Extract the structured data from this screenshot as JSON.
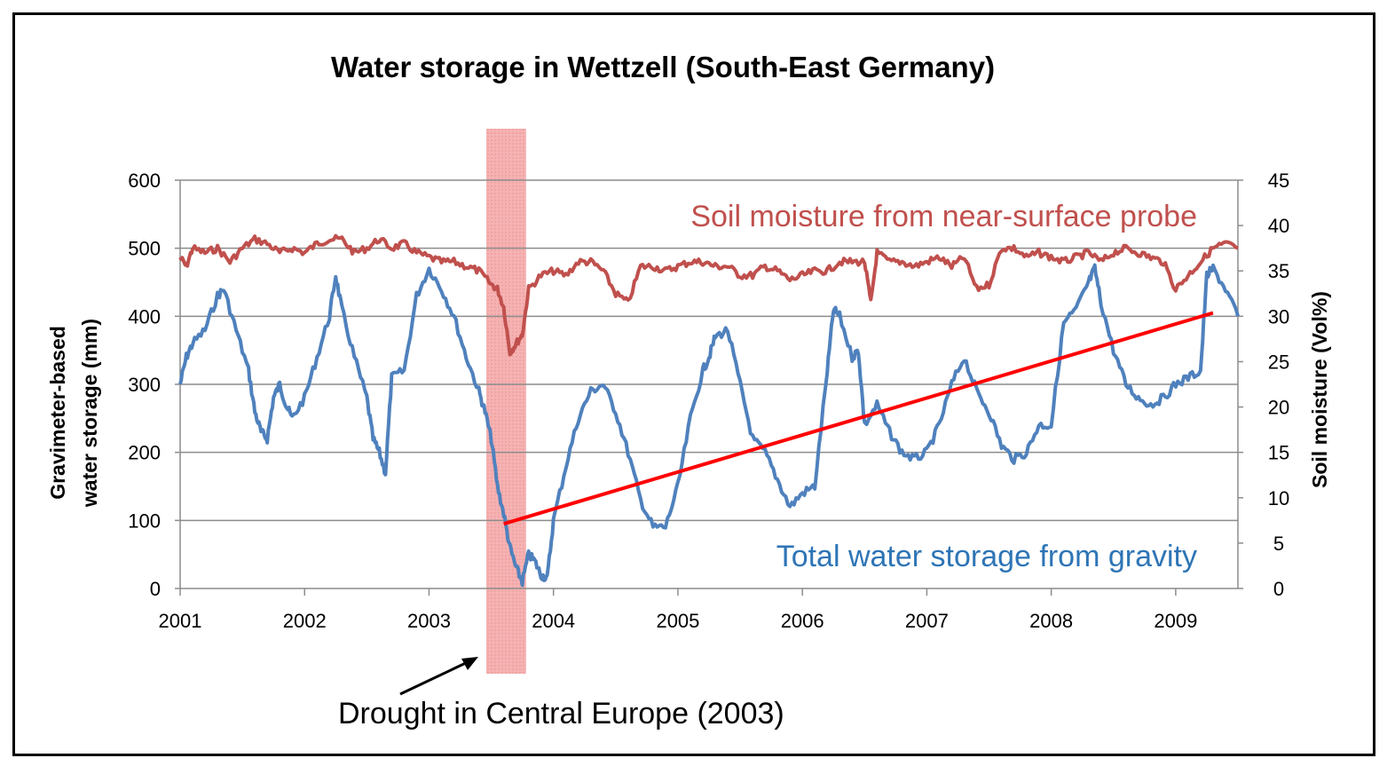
{
  "colors": {
    "soil_series": "#c0504d",
    "gravity_series": "#4f81bd",
    "trend_line": "#ff0000",
    "drought_band": "#f4a4a4",
    "grid": "#8c8c8c"
  },
  "chart_data": {
    "type": "line",
    "title": "Water storage in Wettzell (South-East Germany)",
    "ylabel_left": [
      "Gravimeter-based",
      "water storage (mm)"
    ],
    "ylabel_right": "Soil moisture (Vol%)",
    "xlim": [
      2001.0,
      2009.5
    ],
    "ylim_left": [
      0,
      600
    ],
    "ylim_right": [
      0,
      45
    ],
    "x_ticks": [
      2001,
      2002,
      2003,
      2004,
      2005,
      2006,
      2007,
      2008,
      2009
    ],
    "y_ticks_left": [
      0,
      100,
      200,
      300,
      400,
      500,
      600
    ],
    "y_ticks_right": [
      0,
      5,
      10,
      15,
      20,
      25,
      30,
      35,
      40,
      45
    ],
    "grid": "horizontal",
    "series": [
      {
        "name": "Soil moisture from near-surface probe",
        "axis": "right",
        "color": "#c0504d",
        "x": [
          2001.0,
          2001.05,
          2001.1,
          2001.2,
          2001.3,
          2001.4,
          2001.5,
          2001.6,
          2001.7,
          2001.8,
          2001.9,
          2002.0,
          2002.1,
          2002.2,
          2002.3,
          2002.4,
          2002.5,
          2002.6,
          2002.7,
          2002.8,
          2002.9,
          2003.0,
          2003.1,
          2003.2,
          2003.3,
          2003.4,
          2003.5,
          2003.55,
          2003.6,
          2003.65,
          2003.7,
          2003.75,
          2003.8,
          2003.9,
          2004.0,
          2004.1,
          2004.2,
          2004.3,
          2004.4,
          2004.5,
          2004.6,
          2004.7,
          2004.8,
          2004.9,
          2005.0,
          2005.1,
          2005.2,
          2005.3,
          2005.4,
          2005.5,
          2005.6,
          2005.7,
          2005.8,
          2005.9,
          2006.0,
          2006.1,
          2006.2,
          2006.3,
          2006.4,
          2006.5,
          2006.55,
          2006.6,
          2006.7,
          2006.8,
          2006.9,
          2007.0,
          2007.1,
          2007.2,
          2007.3,
          2007.4,
          2007.5,
          2007.6,
          2007.7,
          2007.8,
          2007.9,
          2008.0,
          2008.1,
          2008.2,
          2008.3,
          2008.4,
          2008.5,
          2008.6,
          2008.7,
          2008.8,
          2008.9,
          2009.0,
          2009.1,
          2009.2,
          2009.3,
          2009.4,
          2009.5
        ],
        "y": [
          36.5,
          35.5,
          37.5,
          37.0,
          37.5,
          36.0,
          37.5,
          38.5,
          38.0,
          37.0,
          37.5,
          37.0,
          38.0,
          38.5,
          38.5,
          37.0,
          37.5,
          38.5,
          37.5,
          38.0,
          37.0,
          36.5,
          36.0,
          36.0,
          35.5,
          35.0,
          33.5,
          33.0,
          31.0,
          26.0,
          27.0,
          28.0,
          33.0,
          34.5,
          35.0,
          34.5,
          36.0,
          36.0,
          35.0,
          32.5,
          31.5,
          35.5,
          35.5,
          35.0,
          35.5,
          36.0,
          36.0,
          35.5,
          35.5,
          34.5,
          34.5,
          35.5,
          35.0,
          34.0,
          34.5,
          35.0,
          35.0,
          36.0,
          36.0,
          36.0,
          31.5,
          37.0,
          36.0,
          36.0,
          35.5,
          36.0,
          36.5,
          35.5,
          36.5,
          33.0,
          33.5,
          37.5,
          37.5,
          36.5,
          37.0,
          36.5,
          36.0,
          36.5,
          37.0,
          36.0,
          37.0,
          37.5,
          37.0,
          36.5,
          36.0,
          33.0,
          34.5,
          36.0,
          37.5,
          38.0,
          37.5
        ]
      },
      {
        "name": "Total water storage from gravity",
        "axis": "left",
        "color": "#4f81bd",
        "x": [
          2001.0,
          2001.05,
          2001.1,
          2001.2,
          2001.3,
          2001.35,
          2001.45,
          2001.55,
          2001.6,
          2001.65,
          2001.7,
          2001.75,
          2001.8,
          2001.85,
          2001.9,
          2002.0,
          2002.1,
          2002.2,
          2002.25,
          2002.3,
          2002.4,
          2002.5,
          2002.55,
          2002.6,
          2002.65,
          2002.7,
          2002.8,
          2002.9,
          2003.0,
          2003.1,
          2003.2,
          2003.3,
          2003.4,
          2003.45,
          2003.5,
          2003.55,
          2003.6,
          2003.65,
          2003.7,
          2003.75,
          2003.8,
          2003.85,
          2003.9,
          2003.95,
          2004.0,
          2004.1,
          2004.2,
          2004.3,
          2004.4,
          2004.5,
          2004.6,
          2004.7,
          2004.8,
          2004.9,
          2005.0,
          2005.1,
          2005.2,
          2005.25,
          2005.3,
          2005.4,
          2005.5,
          2005.6,
          2005.7,
          2005.8,
          2005.9,
          2006.0,
          2006.1,
          2006.2,
          2006.25,
          2006.3,
          2006.4,
          2006.45,
          2006.5,
          2006.6,
          2006.7,
          2006.8,
          2006.9,
          2007.0,
          2007.1,
          2007.2,
          2007.3,
          2007.4,
          2007.5,
          2007.6,
          2007.7,
          2007.8,
          2007.9,
          2008.0,
          2008.1,
          2008.2,
          2008.3,
          2008.35,
          2008.4,
          2008.5,
          2008.6,
          2008.7,
          2008.8,
          2008.9,
          2009.0,
          2009.1,
          2009.2,
          2009.25,
          2009.3,
          2009.4,
          2009.5
        ],
        "y": [
          300,
          340,
          360,
          380,
          430,
          440,
          380,
          320,
          260,
          230,
          220,
          280,
          300,
          270,
          250,
          280,
          340,
          400,
          460,
          410,
          340,
          280,
          220,
          200,
          170,
          310,
          320,
          430,
          470,
          440,
          400,
          340,
          290,
          260,
          220,
          150,
          110,
          60,
          30,
          10,
          50,
          40,
          20,
          15,
          100,
          180,
          250,
          290,
          300,
          260,
          200,
          130,
          90,
          90,
          150,
          250,
          320,
          340,
          370,
          380,
          300,
          220,
          200,
          160,
          120,
          140,
          150,
          320,
          410,
          400,
          340,
          350,
          240,
          270,
          230,
          200,
          190,
          200,
          240,
          300,
          340,
          290,
          260,
          210,
          190,
          200,
          240,
          240,
          390,
          410,
          450,
          470,
          420,
          350,
          300,
          280,
          270,
          280,
          300,
          310,
          320,
          460,
          470,
          440,
          400
        ]
      }
    ],
    "trend_line": {
      "x": [
        2003.6,
        2009.3
      ],
      "y": [
        95,
        405
      ],
      "axis": "left"
    },
    "highlight_band": {
      "x": [
        2003.46,
        2003.78
      ]
    },
    "annotations": {
      "soil": "Soil moisture from near-surface probe",
      "gravity": "Total water storage from gravity",
      "drought": "Drought in Central Europe (2003)"
    }
  }
}
